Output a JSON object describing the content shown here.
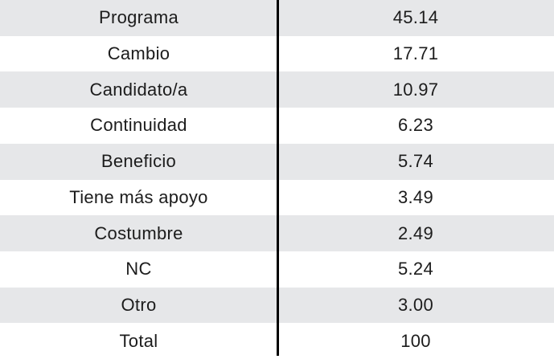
{
  "chart_data": {
    "type": "table",
    "title": "",
    "columns": [
      "category",
      "value"
    ],
    "categories": [
      "Programa",
      "Cambio",
      "Candidato/a",
      "Continuidad",
      "Beneficio",
      "Tiene más apoyo",
      "Costumbre",
      "NC",
      "Otro",
      "Total"
    ],
    "values": [
      45.14,
      17.71,
      10.97,
      6.23,
      5.74,
      3.49,
      2.49,
      5.24,
      3.0,
      100
    ],
    "layout": {
      "striped_rows": "odd rows shaded",
      "column_divider": "vertical black line between columns",
      "text_alignment": "centered in each column"
    }
  },
  "table": {
    "rows": [
      {
        "label": "Programa",
        "value": "45.14"
      },
      {
        "label": "Cambio",
        "value": "17.71"
      },
      {
        "label": "Candidato/a",
        "value": "10.97"
      },
      {
        "label": "Continuidad",
        "value": "6.23"
      },
      {
        "label": "Beneficio",
        "value": "5.74"
      },
      {
        "label": "Tiene más apoyo",
        "value": "3.49"
      },
      {
        "label": "Costumbre",
        "value": "2.49"
      },
      {
        "label": "NC",
        "value": "5.24"
      },
      {
        "label": "Otro",
        "value": "3.00"
      },
      {
        "label": "Total",
        "value": "100"
      }
    ]
  },
  "colors": {
    "stripe": "#e6e7e9",
    "background": "#ffffff",
    "divider": "#000000",
    "text": "#1c1c1c"
  }
}
